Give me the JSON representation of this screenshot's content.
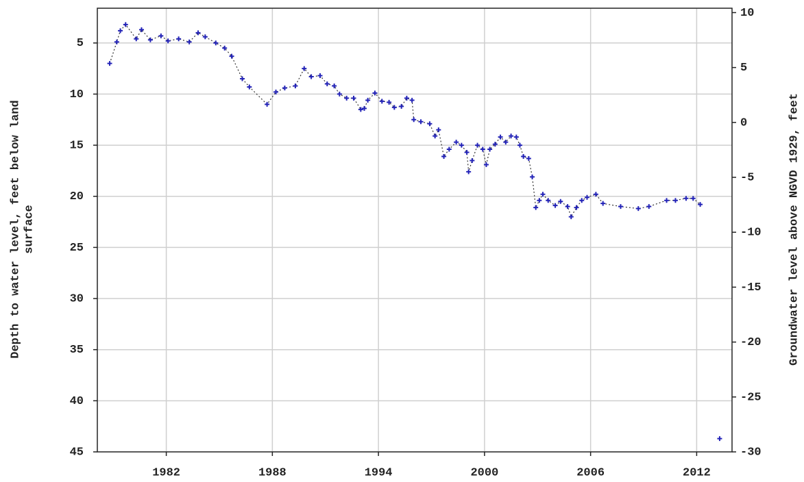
{
  "chart_data": {
    "type": "line",
    "marker": "+",
    "grid": true,
    "x": [
      1978.8,
      1979.2,
      1979.4,
      1979.7,
      1980.3,
      1980.6,
      1981.1,
      1981.7,
      1982.1,
      1982.7,
      1983.3,
      1983.8,
      1984.2,
      1984.8,
      1985.3,
      1985.7,
      1986.3,
      1986.7,
      1987.7,
      1988.2,
      1988.7,
      1989.3,
      1989.8,
      1990.2,
      1990.7,
      1991.1,
      1991.5,
      1991.8,
      1992.2,
      1992.6,
      1993.0,
      1993.2,
      1993.4,
      1993.8,
      1994.2,
      1994.6,
      1994.9,
      1995.3,
      1995.6,
      1995.9,
      1996.0,
      1996.4,
      1996.9,
      1997.2,
      1997.4,
      1997.7,
      1998.0,
      1998.4,
      1998.7,
      1999.0,
      1999.1,
      1999.3,
      1999.6,
      1999.9,
      2000.1,
      2000.3,
      2000.6,
      2000.9,
      2001.2,
      2001.5,
      2001.8,
      2002.0,
      2002.2,
      2002.5,
      2002.7,
      2002.9,
      2003.1,
      2003.3,
      2003.6,
      2004.0,
      2004.3,
      2004.7,
      2004.9,
      2005.2,
      2005.5,
      2005.8,
      2006.3,
      2006.7,
      2007.7,
      2008.7,
      2009.3,
      2010.3,
      2010.8,
      2011.4,
      2011.8,
      2012.2,
      2012.7,
      2013.3
    ],
    "series": [
      {
        "color": "#2323b8",
        "values": [
          7.0,
          4.9,
          3.8,
          3.2,
          4.6,
          3.7,
          4.7,
          4.3,
          4.8,
          4.6,
          4.9,
          4.0,
          4.4,
          5.0,
          5.5,
          6.3,
          8.5,
          9.3,
          11.0,
          9.8,
          9.4,
          9.2,
          7.5,
          8.3,
          8.2,
          9.0,
          9.2,
          10.0,
          10.4,
          10.4,
          11.5,
          11.4,
          10.6,
          9.9,
          10.7,
          10.8,
          11.3,
          11.2,
          10.4,
          10.6,
          12.5,
          12.7,
          12.9,
          14.1,
          13.5,
          16.1,
          15.4,
          14.7,
          15.0,
          15.7,
          17.6,
          16.5,
          15.0,
          15.4,
          16.9,
          15.4,
          14.9,
          14.2,
          14.7,
          14.1,
          14.2,
          15.0,
          16.1,
          16.3,
          18.1,
          21.1,
          20.4,
          19.8,
          20.4,
          20.9,
          20.5,
          21.0,
          22.0,
          21.1,
          20.4,
          20.1,
          19.8,
          20.7,
          21.0,
          21.2,
          21.0,
          20.4,
          20.4,
          20.2,
          20.2,
          20.8,
          null,
          43.7
        ]
      }
    ],
    "xlim": [
      1978.1,
      2014
    ],
    "xticks": [
      1982,
      1988,
      1994,
      2000,
      2006,
      2012
    ],
    "ylim": [
      45,
      1.6
    ],
    "yticks": [
      5,
      10,
      15,
      20,
      25,
      30,
      35,
      40,
      45
    ],
    "y2lim": [
      -30,
      10.4
    ],
    "y2ticks": [
      10,
      5,
      0,
      -5,
      -10,
      -15,
      -20,
      -25,
      -30
    ],
    "ylabel": [
      "Depth to water level, feet below land",
      "surface"
    ],
    "y2label": "Groundwater level above NGVD 1929, feet"
  }
}
